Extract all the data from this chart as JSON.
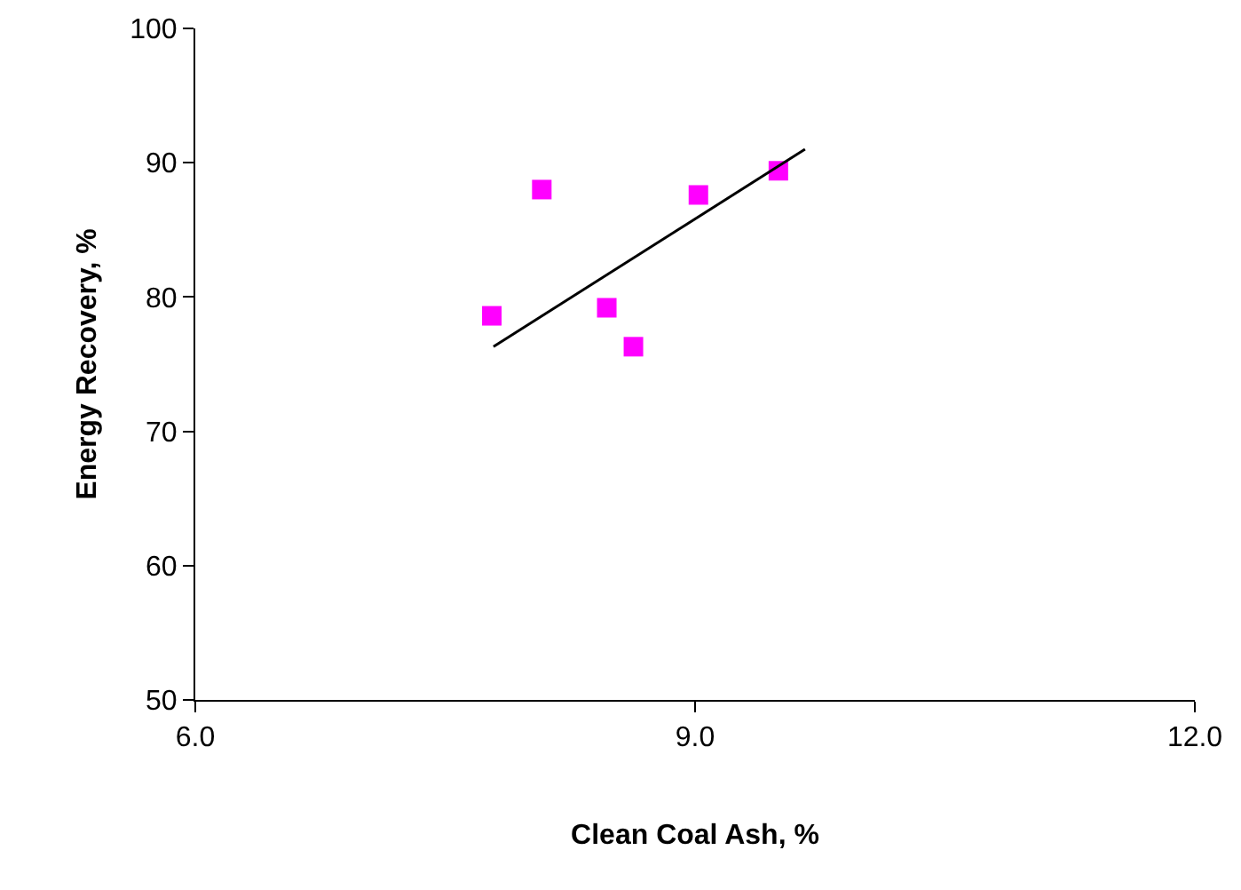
{
  "chart_data": {
    "type": "scatter",
    "xlabel": "Clean Coal Ash, %",
    "ylabel": "Energy Recovery, %",
    "xlim": [
      6,
      12
    ],
    "xticks": [
      {
        "value": 6,
        "label": "6.0"
      },
      {
        "value": 9,
        "label": "9.0"
      },
      {
        "value": 12,
        "label": "12.0"
      }
    ],
    "ylim": [
      50,
      100
    ],
    "yticks": [
      50,
      60,
      70,
      80,
      90,
      100
    ],
    "grid": false,
    "marker": "square",
    "series": [
      {
        "color": "#ff00ff",
        "x": [
          7.78,
          8.08,
          8.47,
          8.63,
          9.02,
          9.5
        ],
        "values": [
          78.6,
          88.0,
          79.2,
          76.3,
          87.6,
          89.4
        ]
      },
      {
        "type": "line",
        "color": "#000000",
        "marker": "none",
        "x": [
          7.79,
          9.66
        ],
        "values": [
          76.3,
          91.0
        ]
      }
    ]
  }
}
